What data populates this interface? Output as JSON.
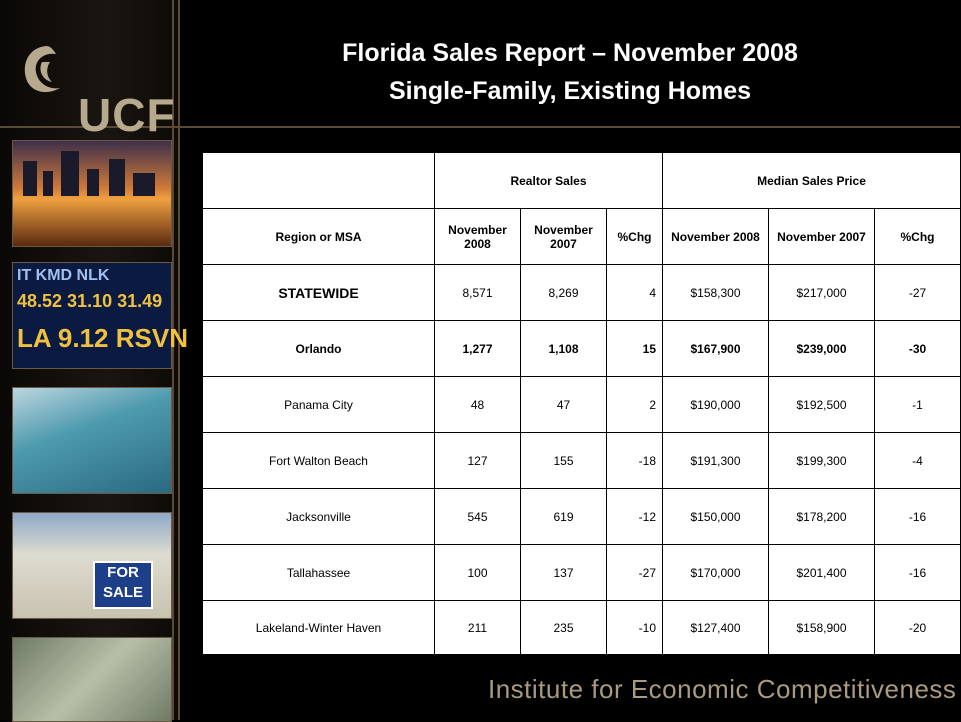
{
  "title": {
    "line1": "Florida Sales Report – November 2008",
    "line2": "Single-Family, Existing Homes"
  },
  "logo": {
    "text": "UCF",
    "icon": "pegasus-icon"
  },
  "footer": "Institute for Economic Competitiveness",
  "photos": {
    "ticker_row1": "IT  KMD  NLK",
    "ticker_row2": "48.52  31.10  31.49",
    "ticker_row3": "LA 9.12  RSVN",
    "sale_sign": "FOR SALE"
  },
  "table": {
    "group_headers": [
      "Realtor Sales",
      "Median Sales Price"
    ],
    "col_headers": [
      "Region or MSA",
      "November 2008",
      "November 2007",
      "%Chg",
      "November 2008",
      "November 2007",
      "%Chg"
    ],
    "rows": [
      [
        "STATEWIDE",
        "8,571",
        "8,269",
        "4",
        "$158,300",
        "$217,000",
        "-27"
      ],
      [
        "Orlando",
        "1,277",
        "1,108",
        "15",
        "$167,900",
        "$239,000",
        "-30"
      ],
      [
        "Panama City",
        "48",
        "47",
        "2",
        "$190,000",
        "$192,500",
        "-1"
      ],
      [
        "Fort Walton Beach",
        "127",
        "155",
        "-18",
        "$191,300",
        "$199,300",
        "-4"
      ],
      [
        "Jacksonville",
        "545",
        "619",
        "-12",
        "$150,000",
        "$178,200",
        "-16"
      ],
      [
        "Tallahassee",
        "100",
        "137",
        "-27",
        "$170,000",
        "$201,400",
        "-16"
      ],
      [
        "Lakeland-Winter Haven",
        "211",
        "235",
        "-10",
        "$127,400",
        "$158,900",
        "-20"
      ]
    ],
    "highlight_color": "#c00000"
  }
}
